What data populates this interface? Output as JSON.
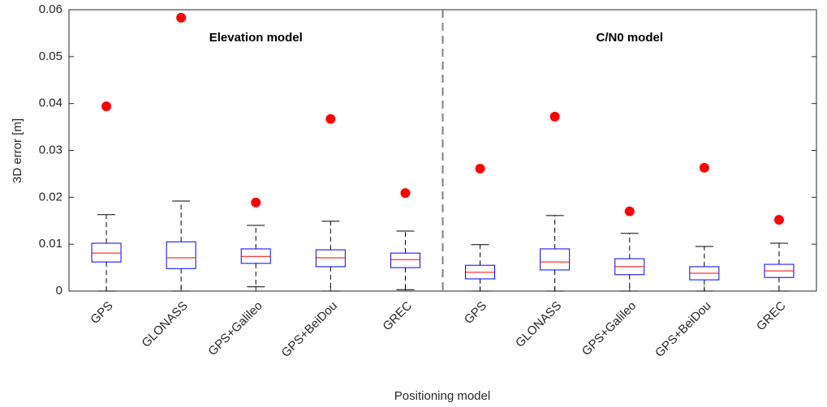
{
  "chart_data": {
    "type": "box",
    "y_label": "3D error [m]",
    "x_label": "Positioning model",
    "annotations": [
      "Elevation model",
      "C/N0 model"
    ],
    "categories": [
      "GPS",
      "GLONASS",
      "GPS+Galileo",
      "GPS+BeiDou",
      "GREC",
      "GPS",
      "GLONASS",
      "GPS+Galileo",
      "GPS+BeiDou",
      "GREC"
    ],
    "boxes": [
      {
        "whisker_low": 0,
        "q1": 0.0062,
        "median": 0.0081,
        "q3": 0.0102,
        "whisker_high": 0.0163,
        "outliers": [
          0.0394
        ]
      },
      {
        "whisker_low": 0,
        "q1": 0.0048,
        "median": 0.0071,
        "q3": 0.0105,
        "whisker_high": 0.0192,
        "outliers": [
          0.0583
        ]
      },
      {
        "whisker_low": 0.0009,
        "q1": 0.0059,
        "median": 0.0074,
        "q3": 0.009,
        "whisker_high": 0.014,
        "outliers": [
          0.0189
        ]
      },
      {
        "whisker_low": 0,
        "q1": 0.0052,
        "median": 0.0071,
        "q3": 0.0088,
        "whisker_high": 0.0149,
        "outliers": [
          0.0367
        ]
      },
      {
        "whisker_low": 0.0003,
        "q1": 0.005,
        "median": 0.0067,
        "q3": 0.0081,
        "whisker_high": 0.0128,
        "outliers": [
          0.0209
        ]
      },
      {
        "whisker_low": 0,
        "q1": 0.0026,
        "median": 0.004,
        "q3": 0.0055,
        "whisker_high": 0.0099,
        "outliers": [
          0.0261
        ]
      },
      {
        "whisker_low": 0,
        "q1": 0.0045,
        "median": 0.0062,
        "q3": 0.009,
        "whisker_high": 0.0161,
        "outliers": [
          0.0372
        ]
      },
      {
        "whisker_low": 0,
        "q1": 0.0035,
        "median": 0.0052,
        "q3": 0.0069,
        "whisker_high": 0.0123,
        "outliers": [
          0.017
        ]
      },
      {
        "whisker_low": 0,
        "q1": 0.0024,
        "median": 0.0038,
        "q3": 0.0052,
        "whisker_high": 0.0095,
        "outliers": [
          0.0263
        ]
      },
      {
        "whisker_low": 0,
        "q1": 0.0029,
        "median": 0.0043,
        "q3": 0.0057,
        "whisker_high": 0.0102,
        "outliers": [
          0.0152
        ]
      }
    ],
    "box_color": "#0000ff",
    "median_color": "#ff0000",
    "outlier_color": "#ff0000",
    "whisker_color": "#000000",
    "ylim": [
      0,
      0.06
    ],
    "yticks": [
      0,
      0.01,
      0.02,
      0.03,
      0.04,
      0.05,
      0.06
    ],
    "grid": false
  }
}
